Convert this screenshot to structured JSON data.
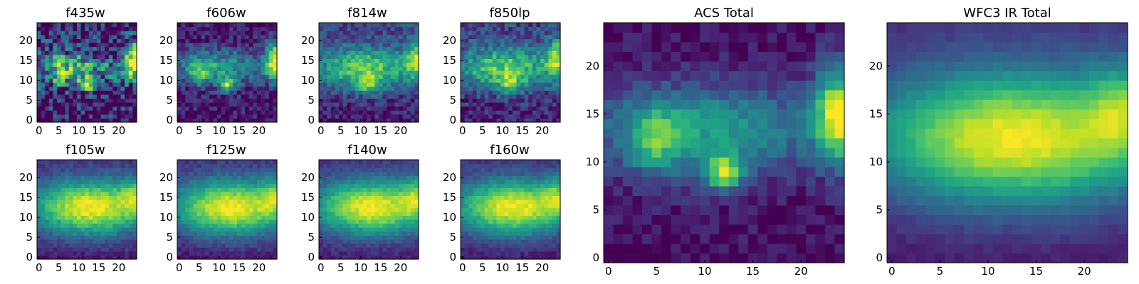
{
  "chart_data": [
    {
      "type": "heatmap",
      "title": "f435w",
      "xlabel": "",
      "ylabel": "",
      "xlim": [
        0,
        24
      ],
      "ylim": [
        0,
        24
      ],
      "xticks": [
        0,
        5,
        10,
        15,
        20
      ],
      "yticks": [
        0,
        5,
        10,
        15,
        20
      ],
      "colormap": "viridis",
      "image": {
        "band": "f435w",
        "noise": 0.34,
        "seed": 11
      }
    },
    {
      "type": "heatmap",
      "title": "f606w",
      "xlabel": "",
      "ylabel": "",
      "xlim": [
        0,
        24
      ],
      "ylim": [
        0,
        24
      ],
      "xticks": [
        0,
        5,
        10,
        15,
        20
      ],
      "yticks": [
        0,
        5,
        10,
        15,
        20
      ],
      "colormap": "viridis",
      "image": {
        "band": "f606w",
        "noise": 0.16,
        "seed": 23
      }
    },
    {
      "type": "heatmap",
      "title": "f814w",
      "xlabel": "",
      "ylabel": "",
      "xlim": [
        0,
        24
      ],
      "ylim": [
        0,
        24
      ],
      "xticks": [
        0,
        5,
        10,
        15,
        20
      ],
      "yticks": [
        0,
        5,
        10,
        15,
        20
      ],
      "colormap": "viridis",
      "image": {
        "band": "f814w",
        "noise": 0.14,
        "seed": 37
      }
    },
    {
      "type": "heatmap",
      "title": "f850lp",
      "xlabel": "",
      "ylabel": "",
      "xlim": [
        0,
        24
      ],
      "ylim": [
        0,
        24
      ],
      "xticks": [
        0,
        5,
        10,
        15,
        20
      ],
      "yticks": [
        0,
        5,
        10,
        15,
        20
      ],
      "colormap": "viridis",
      "image": {
        "band": "f850lp",
        "noise": 0.16,
        "seed": 41
      }
    },
    {
      "type": "heatmap",
      "title": "f105w",
      "xlabel": "",
      "ylabel": "",
      "xlim": [
        0,
        24
      ],
      "ylim": [
        0,
        24
      ],
      "xticks": [
        0,
        5,
        10,
        15,
        20
      ],
      "yticks": [
        0,
        5,
        10,
        15,
        20
      ],
      "colormap": "viridis",
      "image": {
        "band": "f105w",
        "noise": 0.07,
        "seed": 53
      }
    },
    {
      "type": "heatmap",
      "title": "f125w",
      "xlabel": "",
      "ylabel": "",
      "xlim": [
        0,
        24
      ],
      "ylim": [
        0,
        24
      ],
      "xticks": [
        0,
        5,
        10,
        15,
        20
      ],
      "yticks": [
        0,
        5,
        10,
        15,
        20
      ],
      "colormap": "viridis",
      "image": {
        "band": "f125w",
        "noise": 0.06,
        "seed": 67
      }
    },
    {
      "type": "heatmap",
      "title": "f140w",
      "xlabel": "",
      "ylabel": "",
      "xlim": [
        0,
        24
      ],
      "ylim": [
        0,
        24
      ],
      "xticks": [
        0,
        5,
        10,
        15,
        20
      ],
      "yticks": [
        0,
        5,
        10,
        15,
        20
      ],
      "colormap": "viridis",
      "image": {
        "band": "f140w",
        "noise": 0.06,
        "seed": 71
      }
    },
    {
      "type": "heatmap",
      "title": "f160w",
      "xlabel": "",
      "ylabel": "",
      "xlim": [
        0,
        24
      ],
      "ylim": [
        0,
        24
      ],
      "xticks": [
        0,
        5,
        10,
        15,
        20
      ],
      "yticks": [
        0,
        5,
        10,
        15,
        20
      ],
      "colormap": "viridis",
      "image": {
        "band": "f160w",
        "noise": 0.06,
        "seed": 83
      }
    },
    {
      "type": "heatmap",
      "title": "ACS Total",
      "xlabel": "",
      "ylabel": "",
      "xlim": [
        0,
        24
      ],
      "ylim": [
        0,
        24
      ],
      "xticks": [
        0,
        5,
        10,
        15,
        20
      ],
      "yticks": [
        0,
        5,
        10,
        15,
        20
      ],
      "colormap": "viridis",
      "image": {
        "band": "acs",
        "noise": 0.08,
        "seed": 97
      }
    },
    {
      "type": "heatmap",
      "title": "WFC3 IR Total",
      "xlabel": "",
      "ylabel": "",
      "xlim": [
        0,
        24
      ],
      "ylim": [
        0,
        24
      ],
      "xticks": [
        0,
        5,
        10,
        15,
        20
      ],
      "yticks": [
        0,
        5,
        10,
        15,
        20
      ],
      "colormap": "viridis",
      "image": {
        "band": "ir",
        "noise": 0.03,
        "seed": 101
      }
    }
  ]
}
